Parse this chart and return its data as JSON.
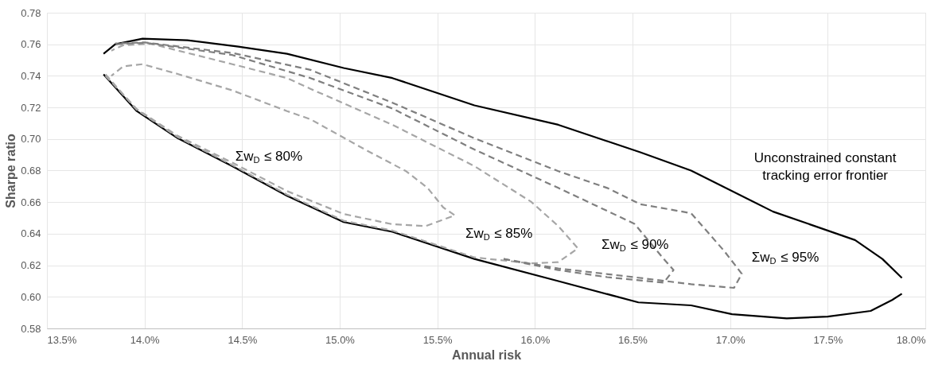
{
  "chart_data": {
    "type": "line",
    "xlabel": "Annual risk",
    "ylabel": "Sharpe ratio",
    "xlim": [
      13.5,
      18.0
    ],
    "xticks": [
      {
        "value": 13.5,
        "label": "13.5%"
      },
      {
        "value": 14.0,
        "label": "14.0%"
      },
      {
        "value": 14.5,
        "label": "14.5%"
      },
      {
        "value": 15.0,
        "label": "15.0%"
      },
      {
        "value": 15.5,
        "label": "15.5%"
      },
      {
        "value": 16.0,
        "label": "16.0%"
      },
      {
        "value": 16.5,
        "label": "16.5%"
      },
      {
        "value": 17.0,
        "label": "17.0%"
      },
      {
        "value": 17.5,
        "label": "17.5%"
      },
      {
        "value": 18.0,
        "label": "18.0%"
      }
    ],
    "ylim": [
      0.58,
      0.78
    ],
    "yticks": [
      0.58,
      {
        "value": 0.6,
        "label": "0.60"
      },
      0.62,
      0.64,
      0.66,
      0.68,
      {
        "value": 0.7,
        "label": "0.70"
      },
      0.72,
      0.74,
      0.76,
      0.78
    ],
    "grid": true,
    "marker": "none",
    "series": [
      {
        "color": "#000000",
        "line_style": "solid",
        "x": [
          13.79,
          13.85,
          13.99,
          14.22,
          14.48,
          14.73,
          15.02,
          15.27,
          15.69,
          16.12,
          16.54,
          16.8,
          17.22,
          17.64,
          17.78,
          17.88
        ],
        "values": [
          0.754,
          0.76,
          0.7636,
          0.7626,
          0.7585,
          0.754,
          0.745,
          0.7386,
          0.7213,
          0.709,
          0.6916,
          0.68,
          0.654,
          0.636,
          0.624,
          0.612
        ]
      },
      {
        "color": "#000000",
        "line_style": "solid",
        "x": [
          13.79,
          13.96,
          14.17,
          14.45,
          14.73,
          15.02,
          15.27,
          15.69,
          16.12,
          16.53,
          16.8,
          17.01,
          17.29,
          17.5,
          17.72,
          17.83,
          17.88
        ],
        "values": [
          0.741,
          0.7177,
          0.7005,
          0.6828,
          0.664,
          0.6474,
          0.6412,
          0.624,
          0.61,
          0.5965,
          0.5946,
          0.589,
          0.5864,
          0.5875,
          0.5911,
          0.598,
          0.602
        ]
      },
      {
        "color": "#a6a6a6",
        "line_style": "dashed",
        "x": [
          13.8,
          13.96,
          14.17,
          14.45,
          14.73,
          15.02,
          15.27,
          15.44,
          15.59,
          15.53,
          15.45,
          15.34,
          15.13,
          14.85,
          14.73,
          14.45,
          14.17,
          13.99,
          13.89,
          13.83
        ],
        "values": [
          0.74,
          0.719,
          0.702,
          0.685,
          0.667,
          0.6525,
          0.646,
          0.6448,
          0.6516,
          0.6567,
          0.669,
          0.6796,
          0.6933,
          0.7125,
          0.7177,
          0.7308,
          0.7412,
          0.7474,
          0.746,
          0.74
        ]
      },
      {
        "color": "#a6a6a6",
        "line_style": "dashed",
        "x": [
          13.8,
          13.96,
          14.17,
          14.45,
          14.73,
          15.02,
          15.27,
          15.69,
          15.98,
          16.12,
          16.22,
          16.12,
          15.98,
          15.69,
          15.27,
          14.85,
          14.73,
          14.45,
          14.03,
          13.89,
          13.83
        ],
        "values": [
          0.741,
          0.7185,
          0.7012,
          0.6835,
          0.6648,
          0.6482,
          0.642,
          0.625,
          0.6212,
          0.622,
          0.6307,
          0.6448,
          0.6603,
          0.6828,
          0.709,
          0.7318,
          0.7386,
          0.7474,
          0.7604,
          0.7594,
          0.756
        ]
      },
      {
        "color": "#7f7f7f",
        "line_style": "dashed",
        "x": [
          15.84,
          16.12,
          16.37,
          16.54,
          16.66,
          16.71,
          16.66,
          16.51,
          16.12,
          15.69,
          15.27,
          14.85,
          14.45,
          14.0,
          13.85
        ],
        "values": [
          0.624,
          0.617,
          0.6125,
          0.6104,
          0.609,
          0.617,
          0.624,
          0.6463,
          0.669,
          0.6933,
          0.7193,
          0.7386,
          0.7532,
          0.761,
          0.76
        ]
      },
      {
        "color": "#7f7f7f",
        "line_style": "dashed",
        "x": [
          15.84,
          16.12,
          16.54,
          16.8,
          17.02,
          17.06,
          16.97,
          16.8,
          16.54,
          16.37,
          16.12,
          15.69,
          15.27,
          14.85,
          14.45,
          14.0,
          13.85
        ],
        "values": [
          0.624,
          0.618,
          0.612,
          0.608,
          0.6057,
          0.6146,
          0.629,
          0.653,
          0.6587,
          0.669,
          0.6796,
          0.7005,
          0.723,
          0.7438,
          0.7545,
          0.7612,
          0.7605
        ]
      }
    ],
    "annotations": [
      "Σw$_{D}$ ≤ 80%",
      "Σw$_{D}$ ≤ 85%",
      "Σw$_{D}$ ≤ 90%",
      "Σw$_{D}$ ≤ 95%",
      "Unconstrained constant tracking error frontier"
    ]
  }
}
